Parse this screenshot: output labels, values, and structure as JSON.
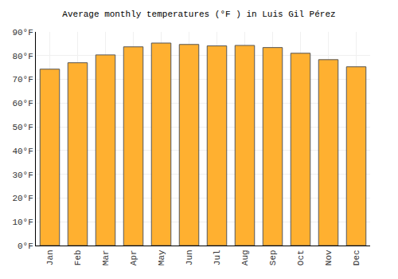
{
  "chart_data": {
    "type": "bar",
    "title": "Average monthly temperatures (°F ) in Luis Gil Pérez",
    "categories": [
      "Jan",
      "Feb",
      "Mar",
      "Apr",
      "May",
      "Jun",
      "Jul",
      "Aug",
      "Sep",
      "Oct",
      "Nov",
      "Dec"
    ],
    "values": [
      74.3,
      77.0,
      80.3,
      83.7,
      85.3,
      84.7,
      84.1,
      84.3,
      83.4,
      81.0,
      78.3,
      75.3
    ],
    "color": "#ffb030",
    "ylim": [
      0,
      90
    ],
    "yticks": [
      {
        "value": 0,
        "label": "0°F"
      },
      {
        "value": 10,
        "label": "10°F"
      },
      {
        "value": 20,
        "label": "20°F"
      },
      {
        "value": 30,
        "label": "30°F"
      },
      {
        "value": 40,
        "label": "40°F"
      },
      {
        "value": 50,
        "label": "50°F"
      },
      {
        "value": 60,
        "label": "60°F"
      },
      {
        "value": 70,
        "label": "70°F"
      },
      {
        "value": 80,
        "label": "80°F"
      },
      {
        "value": 90,
        "label": "90°F"
      }
    ],
    "grid": true
  }
}
